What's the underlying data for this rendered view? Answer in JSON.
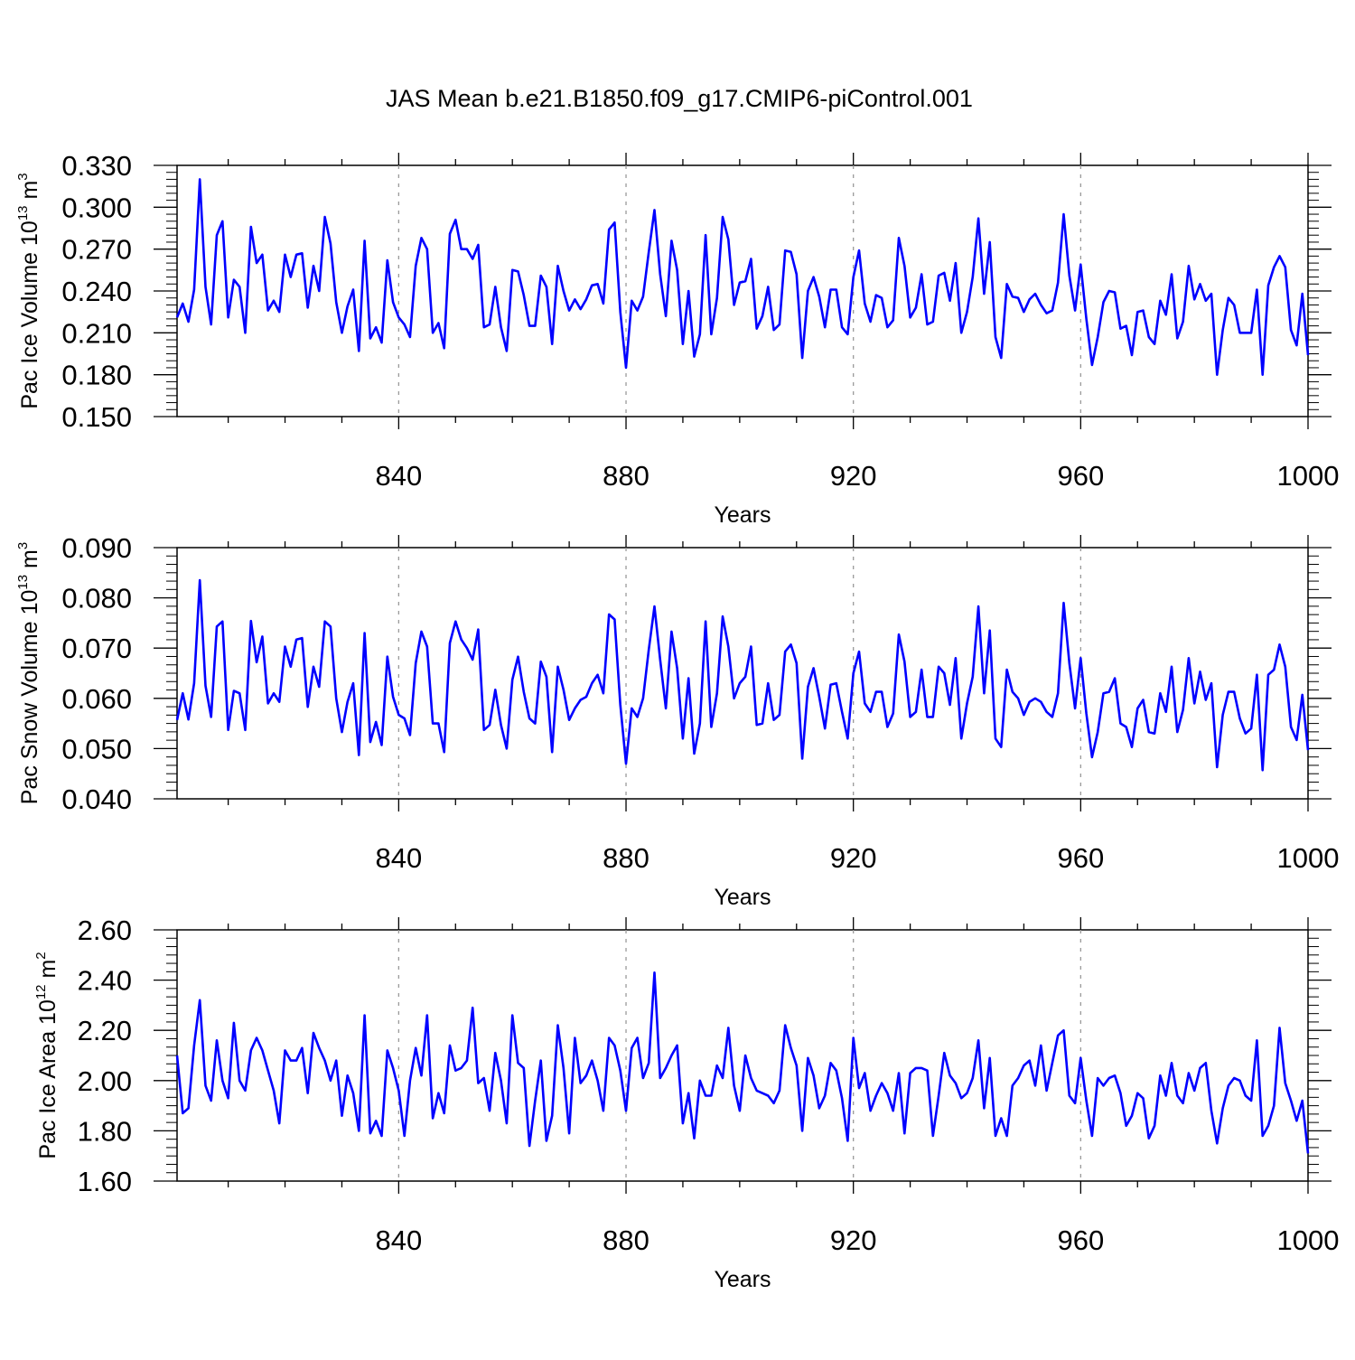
{
  "title": "JAS Mean b.e21.B1850.f09_g17.CMIP6-piControl.001",
  "line_color": "#0000ff",
  "chart_data": [
    {
      "type": "line",
      "ylabel_main": "Pac Ice Volume 10",
      "ylabel_exp": "13",
      "ylabel_unit": " m",
      "ylabel_unit_exp": "3",
      "xlabel": "Years",
      "xlim": [
        801,
        1000
      ],
      "ylim": [
        0.15,
        0.33
      ],
      "yticks": [
        "0.150",
        "0.180",
        "0.210",
        "0.240",
        "0.270",
        "0.300",
        "0.330"
      ],
      "xticks": [
        "840",
        "880",
        "920",
        "960",
        "1000"
      ],
      "series": [
        {
          "values": [
            0.221,
            0.231,
            0.218,
            0.241,
            0.32,
            0.243,
            0.216,
            0.28,
            0.29,
            0.221,
            0.248,
            0.243,
            0.21,
            0.286,
            0.26,
            0.266,
            0.226,
            0.233,
            0.225,
            0.266,
            0.25,
            0.266,
            0.267,
            0.228,
            0.258,
            0.24,
            0.293,
            0.274,
            0.232,
            0.21,
            0.229,
            0.241,
            0.197,
            0.276,
            0.206,
            0.214,
            0.203,
            0.262,
            0.232,
            0.221,
            0.216,
            0.207,
            0.258,
            0.278,
            0.27,
            0.21,
            0.217,
            0.199,
            0.281,
            0.291,
            0.27,
            0.27,
            0.263,
            0.273,
            0.214,
            0.216,
            0.243,
            0.214,
            0.197,
            0.255,
            0.254,
            0.237,
            0.215,
            0.215,
            0.251,
            0.243,
            0.202,
            0.258,
            0.24,
            0.226,
            0.234,
            0.227,
            0.234,
            0.244,
            0.245,
            0.231,
            0.284,
            0.289,
            0.225,
            0.185,
            0.233,
            0.226,
            0.236,
            0.268,
            0.298,
            0.252,
            0.222,
            0.276,
            0.255,
            0.202,
            0.24,
            0.193,
            0.209,
            0.28,
            0.209,
            0.235,
            0.293,
            0.277,
            0.23,
            0.246,
            0.247,
            0.263,
            0.213,
            0.222,
            0.243,
            0.212,
            0.216,
            0.269,
            0.268,
            0.252,
            0.192,
            0.24,
            0.25,
            0.236,
            0.214,
            0.241,
            0.241,
            0.214,
            0.209,
            0.25,
            0.269,
            0.231,
            0.218,
            0.237,
            0.235,
            0.214,
            0.219,
            0.278,
            0.258,
            0.221,
            0.228,
            0.252,
            0.216,
            0.218,
            0.251,
            0.253,
            0.233,
            0.26,
            0.21,
            0.225,
            0.25,
            0.292,
            0.238,
            0.275,
            0.207,
            0.192,
            0.245,
            0.236,
            0.235,
            0.225,
            0.234,
            0.238,
            0.23,
            0.224,
            0.226,
            0.246,
            0.295,
            0.251,
            0.226,
            0.259,
            0.22,
            0.187,
            0.207,
            0.232,
            0.24,
            0.239,
            0.213,
            0.215,
            0.194,
            0.225,
            0.226,
            0.207,
            0.202,
            0.233,
            0.223,
            0.252,
            0.206,
            0.218,
            0.258,
            0.234,
            0.245,
            0.233,
            0.238,
            0.18,
            0.212,
            0.235,
            0.23,
            0.21,
            0.21,
            0.21,
            0.241,
            0.18,
            0.244,
            0.257,
            0.265,
            0.257,
            0.212,
            0.201,
            0.238,
            0.194
          ]
        }
      ]
    },
    {
      "type": "line",
      "ylabel_main": "Pac Snow Volume 10",
      "ylabel_exp": "13",
      "ylabel_unit": " m",
      "ylabel_unit_exp": "3",
      "xlabel": "Years",
      "xlim": [
        801,
        1000
      ],
      "ylim": [
        0.04,
        0.09
      ],
      "yticks": [
        "0.040",
        "0.050",
        "0.060",
        "0.070",
        "0.080",
        "0.090"
      ],
      "xticks": [
        "840",
        "880",
        "920",
        "960",
        "1000"
      ],
      "series": [
        {
          "values": [
            0.0557,
            0.061,
            0.0558,
            0.063,
            0.0835,
            0.0625,
            0.0563,
            0.0743,
            0.0753,
            0.0537,
            0.0615,
            0.061,
            0.0537,
            0.0754,
            0.0672,
            0.0723,
            0.059,
            0.061,
            0.0593,
            0.0703,
            0.0663,
            0.0717,
            0.072,
            0.0583,
            0.0663,
            0.0623,
            0.0753,
            0.0743,
            0.06,
            0.0533,
            0.0593,
            0.063,
            0.0487,
            0.073,
            0.0513,
            0.0553,
            0.0507,
            0.0683,
            0.0603,
            0.0567,
            0.056,
            0.0527,
            0.067,
            0.0733,
            0.0703,
            0.055,
            0.055,
            0.0493,
            0.071,
            0.0753,
            0.0717,
            0.07,
            0.0677,
            0.0737,
            0.0537,
            0.0547,
            0.0617,
            0.0547,
            0.05,
            0.0637,
            0.0683,
            0.0613,
            0.056,
            0.055,
            0.0673,
            0.0643,
            0.0493,
            0.0663,
            0.0617,
            0.0557,
            0.058,
            0.0597,
            0.0603,
            0.063,
            0.0647,
            0.061,
            0.0767,
            0.0757,
            0.0587,
            0.047,
            0.058,
            0.0563,
            0.06,
            0.0697,
            0.0783,
            0.0677,
            0.058,
            0.0733,
            0.066,
            0.052,
            0.064,
            0.049,
            0.055,
            0.0753,
            0.0543,
            0.061,
            0.0763,
            0.0703,
            0.06,
            0.063,
            0.0643,
            0.0703,
            0.0547,
            0.055,
            0.063,
            0.0557,
            0.0567,
            0.0693,
            0.0707,
            0.067,
            0.048,
            0.0623,
            0.066,
            0.0603,
            0.054,
            0.0627,
            0.063,
            0.0573,
            0.052,
            0.065,
            0.0693,
            0.059,
            0.0573,
            0.0613,
            0.0613,
            0.0543,
            0.057,
            0.0727,
            0.0673,
            0.0563,
            0.0573,
            0.0657,
            0.0563,
            0.0563,
            0.0663,
            0.065,
            0.0587,
            0.068,
            0.052,
            0.059,
            0.0643,
            0.0783,
            0.061,
            0.0735,
            0.052,
            0.0503,
            0.0657,
            0.0613,
            0.06,
            0.0567,
            0.0593,
            0.06,
            0.0593,
            0.0573,
            0.0563,
            0.061,
            0.079,
            0.067,
            0.058,
            0.068,
            0.057,
            0.0483,
            0.0533,
            0.061,
            0.0613,
            0.064,
            0.055,
            0.0543,
            0.0503,
            0.058,
            0.0597,
            0.0533,
            0.053,
            0.061,
            0.0573,
            0.0663,
            0.0533,
            0.0577,
            0.068,
            0.059,
            0.0653,
            0.0597,
            0.063,
            0.0463,
            0.0567,
            0.0613,
            0.0613,
            0.056,
            0.053,
            0.054,
            0.0647,
            0.0457,
            0.0647,
            0.0657,
            0.0707,
            0.0663,
            0.0543,
            0.0517,
            0.0607,
            0.0497
          ]
        }
      ]
    },
    {
      "type": "line",
      "ylabel_main": "Pac Ice Area 10",
      "ylabel_exp": "12",
      "ylabel_unit": " m",
      "ylabel_unit_exp": "2",
      "xlabel": "Years",
      "xlim": [
        801,
        1000
      ],
      "ylim": [
        1.6,
        2.6
      ],
      "yticks": [
        "1.60",
        "1.80",
        "2.00",
        "2.20",
        "2.40",
        "2.60"
      ],
      "xticks": [
        "840",
        "880",
        "920",
        "960",
        "1000"
      ],
      "series": [
        {
          "values": [
            2.1,
            1.87,
            1.89,
            2.14,
            2.32,
            1.98,
            1.92,
            2.16,
            2.0,
            1.93,
            2.23,
            2.0,
            1.96,
            2.12,
            2.17,
            2.12,
            2.04,
            1.96,
            1.83,
            2.12,
            2.08,
            2.08,
            2.13,
            1.95,
            2.19,
            2.13,
            2.08,
            2.0,
            2.08,
            1.86,
            2.02,
            1.95,
            1.8,
            2.26,
            1.79,
            1.84,
            1.78,
            2.12,
            2.05,
            1.96,
            1.78,
            2.0,
            2.13,
            2.02,
            2.26,
            1.85,
            1.95,
            1.87,
            2.14,
            2.04,
            2.05,
            2.08,
            2.29,
            1.99,
            2.01,
            1.88,
            2.11,
            2.0,
            1.83,
            2.26,
            2.07,
            2.05,
            1.74,
            1.92,
            2.08,
            1.76,
            1.86,
            2.22,
            2.05,
            1.79,
            2.17,
            1.99,
            2.02,
            2.08,
            2.0,
            1.88,
            2.17,
            2.14,
            2.04,
            1.88,
            2.13,
            2.17,
            2.01,
            2.07,
            2.43,
            2.01,
            2.05,
            2.1,
            2.14,
            1.83,
            1.95,
            1.77,
            2.0,
            1.94,
            1.94,
            2.06,
            2.01,
            2.21,
            1.98,
            1.88,
            2.1,
            2.01,
            1.96,
            1.95,
            1.94,
            1.91,
            1.96,
            2.22,
            2.13,
            2.06,
            1.8,
            2.09,
            2.02,
            1.89,
            1.94,
            2.07,
            2.04,
            1.93,
            1.76,
            2.17,
            1.97,
            2.03,
            1.88,
            1.94,
            1.99,
            1.95,
            1.88,
            2.03,
            1.79,
            2.03,
            2.05,
            2.05,
            2.04,
            1.78,
            1.94,
            2.11,
            2.02,
            1.99,
            1.93,
            1.95,
            2.01,
            2.16,
            1.89,
            2.09,
            1.78,
            1.85,
            1.78,
            1.98,
            2.01,
            2.06,
            2.08,
            1.98,
            2.14,
            1.96,
            2.07,
            2.18,
            2.2,
            1.94,
            1.91,
            2.09,
            1.92,
            1.78,
            2.01,
            1.98,
            2.01,
            2.02,
            1.95,
            1.82,
            1.86,
            1.95,
            1.93,
            1.77,
            1.82,
            2.02,
            1.94,
            2.07,
            1.94,
            1.91,
            2.03,
            1.96,
            2.05,
            2.07,
            1.88,
            1.75,
            1.89,
            1.98,
            2.01,
            2.0,
            1.94,
            1.92,
            2.16,
            1.78,
            1.82,
            1.9,
            2.21,
            1.99,
            1.92,
            1.84,
            1.92,
            1.71
          ]
        }
      ]
    }
  ]
}
